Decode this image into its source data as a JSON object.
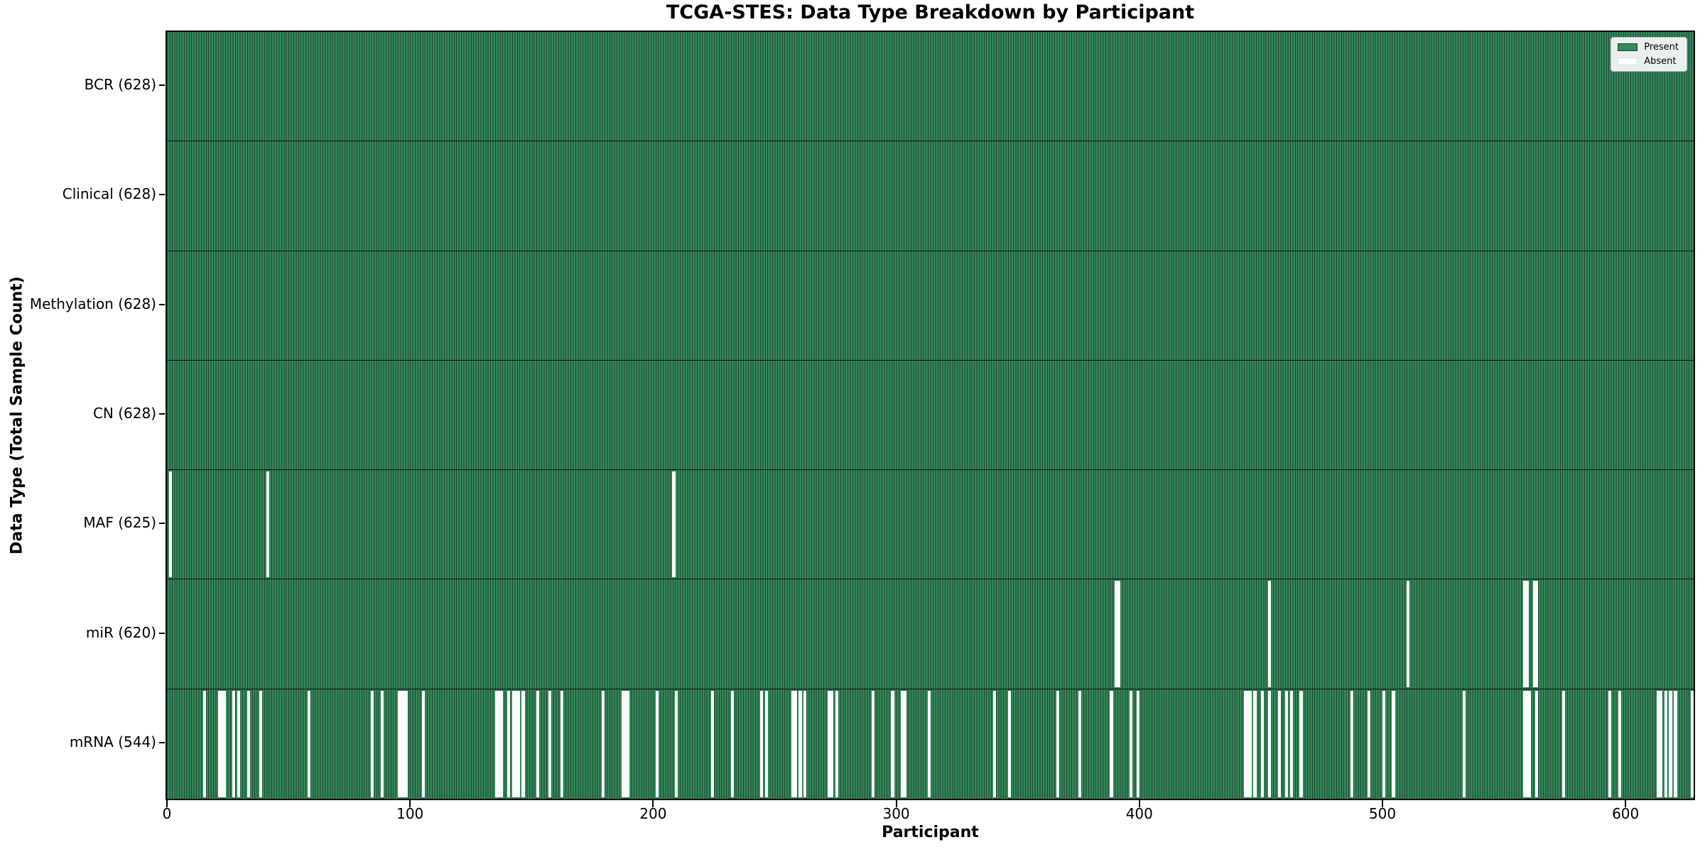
{
  "chart_data": {
    "type": "heatmap",
    "title": "TCGA-STES: Data Type Breakdown by Participant",
    "xlabel": "Participant",
    "ylabel": "Data Type (Total Sample Count)",
    "x_range": [
      0,
      628
    ],
    "xticks": [
      0,
      100,
      200,
      300,
      400,
      500,
      600
    ],
    "n_participants": 628,
    "grid": false,
    "legend_position": "upper right",
    "legend": [
      {
        "label": "Present",
        "color": "#35895a"
      },
      {
        "label": "Absent",
        "color": "#ffffff"
      }
    ],
    "rows": [
      {
        "label": "BCR",
        "total": 628,
        "absent": []
      },
      {
        "label": "Clinical",
        "total": 628,
        "absent": []
      },
      {
        "label": "Methylation",
        "total": 628,
        "absent": []
      },
      {
        "label": "CN",
        "total": 628,
        "absent": []
      },
      {
        "label": "MAF",
        "total": 625,
        "absent": [
          1,
          41,
          208
        ]
      },
      {
        "label": "miR",
        "total": 620,
        "absent": [
          390,
          391,
          453,
          510,
          558,
          559,
          562,
          563
        ]
      },
      {
        "label": "mRNA",
        "total": 544,
        "absent": [
          15,
          21,
          22,
          23,
          27,
          29,
          33,
          38,
          58,
          84,
          88,
          95,
          96,
          97,
          98,
          105,
          135,
          136,
          137,
          140,
          142,
          143,
          144,
          146,
          152,
          157,
          162,
          179,
          187,
          188,
          189,
          201,
          209,
          224,
          232,
          244,
          246,
          257,
          258,
          260,
          262,
          272,
          273,
          275,
          290,
          298,
          302,
          303,
          313,
          340,
          346,
          366,
          375,
          388,
          396,
          399,
          443,
          444,
          445,
          447,
          450,
          453,
          457,
          460,
          462,
          466,
          487,
          494,
          500,
          504,
          533,
          558,
          559,
          560,
          563,
          574,
          593,
          597,
          613,
          614,
          616,
          618,
          620,
          627
        ]
      }
    ]
  },
  "colors": {
    "present_fill": "#35895a",
    "bar_edge": "#1c4530",
    "absent": "#ffffff",
    "separator": "#101010",
    "plot_border": "#000000",
    "legend_border": "#b6b6b6"
  }
}
